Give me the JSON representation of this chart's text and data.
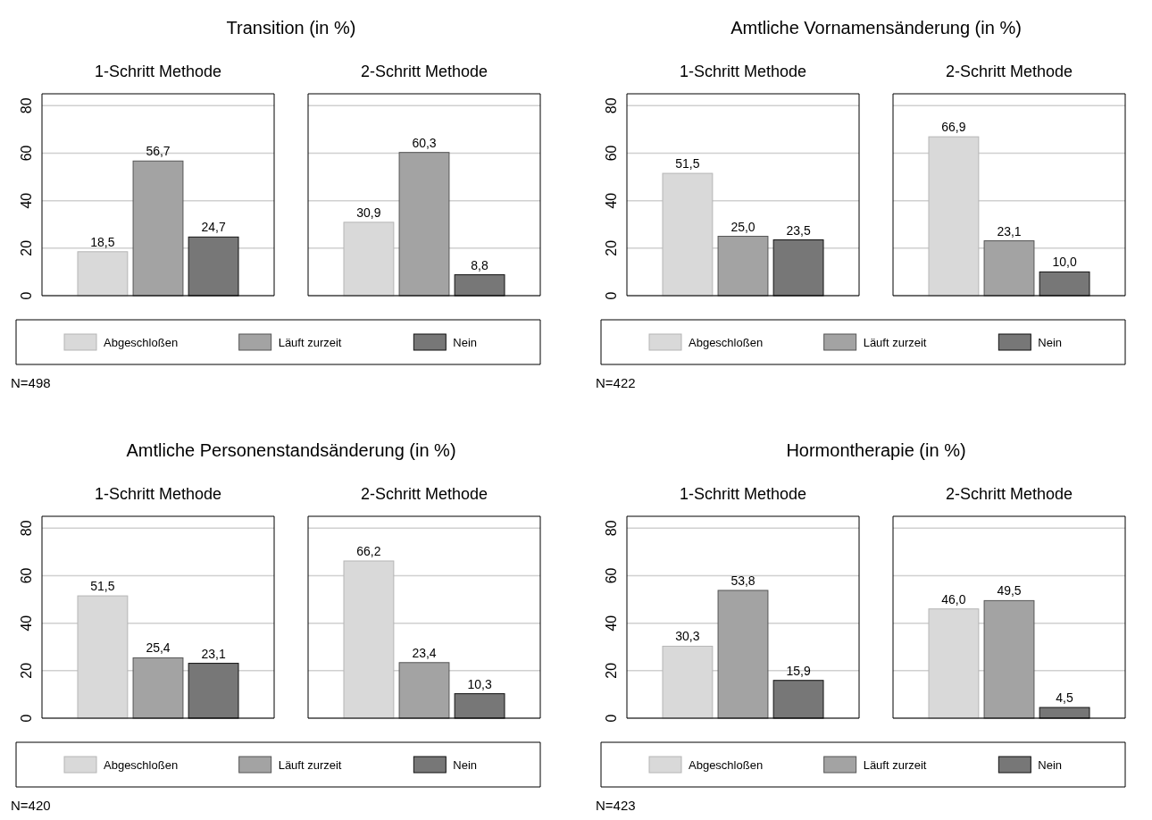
{
  "chart_data": [
    {
      "type": "bar",
      "title": "Transition (in %)",
      "categories": [
        "1-Schritt Methode",
        "2-Schritt Methode"
      ],
      "series": [
        {
          "name": "Abgeschloßen",
          "color": "#d9d9d9",
          "values": [
            18.5,
            30.9
          ],
          "value_labels": [
            "18,5",
            "30,9"
          ]
        },
        {
          "name": "Läuft zurzeit",
          "color": "#a3a3a3",
          "values": [
            56.7,
            60.3
          ],
          "value_labels": [
            "56,7",
            "60,3"
          ]
        },
        {
          "name": "Nein",
          "color": "#777777",
          "values": [
            24.7,
            8.8
          ],
          "value_labels": [
            "24,7",
            "8,8"
          ]
        }
      ],
      "ylim": [
        0,
        85
      ],
      "yticks": [
        0,
        20,
        40,
        60,
        80
      ],
      "grid": "y",
      "legend": "bottom",
      "annotations": [
        "N=498"
      ]
    },
    {
      "type": "bar",
      "title": "Amtliche Vornamensänderung (in %)",
      "categories": [
        "1-Schritt Methode",
        "2-Schritt Methode"
      ],
      "series": [
        {
          "name": "Abgeschloßen",
          "color": "#d9d9d9",
          "values": [
            51.5,
            66.9
          ],
          "value_labels": [
            "51,5",
            "66,9"
          ]
        },
        {
          "name": "Läuft zurzeit",
          "color": "#a3a3a3",
          "values": [
            25.0,
            23.1
          ],
          "value_labels": [
            "25,0",
            "23,1"
          ]
        },
        {
          "name": "Nein",
          "color": "#777777",
          "values": [
            23.5,
            10.0
          ],
          "value_labels": [
            "23,5",
            "10,0"
          ]
        }
      ],
      "ylim": [
        0,
        85
      ],
      "yticks": [
        0,
        20,
        40,
        60,
        80
      ],
      "grid": "y",
      "legend": "bottom",
      "annotations": [
        "N=422"
      ]
    },
    {
      "type": "bar",
      "title": "Amtliche Personenstandsänderung (in %)",
      "categories": [
        "1-Schritt Methode",
        "2-Schritt Methode"
      ],
      "series": [
        {
          "name": "Abgeschloßen",
          "color": "#d9d9d9",
          "values": [
            51.5,
            66.2
          ],
          "value_labels": [
            "51,5",
            "66,2"
          ]
        },
        {
          "name": "Läuft zurzeit",
          "color": "#a3a3a3",
          "values": [
            25.4,
            23.4
          ],
          "value_labels": [
            "25,4",
            "23,4"
          ]
        },
        {
          "name": "Nein",
          "color": "#777777",
          "values": [
            23.1,
            10.3
          ],
          "value_labels": [
            "23,1",
            "10,3"
          ]
        }
      ],
      "ylim": [
        0,
        85
      ],
      "yticks": [
        0,
        20,
        40,
        60,
        80
      ],
      "grid": "y",
      "legend": "bottom",
      "annotations": [
        "N=420"
      ]
    },
    {
      "type": "bar",
      "title": "Hormontherapie (in %)",
      "categories": [
        "1-Schritt Methode",
        "2-Schritt Methode"
      ],
      "series": [
        {
          "name": "Abgeschloßen",
          "color": "#d9d9d9",
          "values": [
            30.3,
            46.0
          ],
          "value_labels": [
            "30,3",
            "46,0"
          ]
        },
        {
          "name": "Läuft zurzeit",
          "color": "#a3a3a3",
          "values": [
            53.8,
            49.5
          ],
          "value_labels": [
            "53,8",
            "49,5"
          ]
        },
        {
          "name": "Nein",
          "color": "#777777",
          "values": [
            15.9,
            4.5
          ],
          "value_labels": [
            "15,9",
            "4,5"
          ]
        }
      ],
      "ylim": [
        0,
        85
      ],
      "yticks": [
        0,
        20,
        40,
        60,
        80
      ],
      "grid": "y",
      "legend": "bottom",
      "annotations": [
        "N=423"
      ]
    }
  ]
}
